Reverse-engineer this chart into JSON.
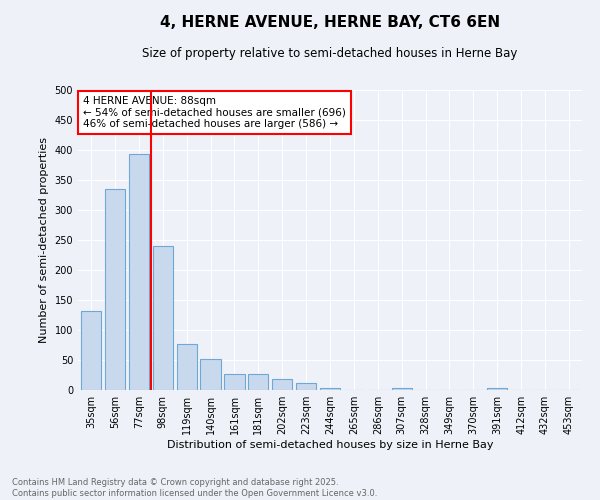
{
  "title": "4, HERNE AVENUE, HERNE BAY, CT6 6EN",
  "subtitle": "Size of property relative to semi-detached houses in Herne Bay",
  "xlabel": "Distribution of semi-detached houses by size in Herne Bay",
  "ylabel": "Number of semi-detached properties",
  "footer_line1": "Contains HM Land Registry data © Crown copyright and database right 2025.",
  "footer_line2": "Contains public sector information licensed under the Open Government Licence v3.0.",
  "bar_labels": [
    "35sqm",
    "56sqm",
    "77sqm",
    "98sqm",
    "119sqm",
    "140sqm",
    "161sqm",
    "181sqm",
    "202sqm",
    "223sqm",
    "244sqm",
    "265sqm",
    "286sqm",
    "307sqm",
    "328sqm",
    "349sqm",
    "370sqm",
    "391sqm",
    "412sqm",
    "432sqm",
    "453sqm"
  ],
  "bar_values": [
    132,
    335,
    393,
    240,
    77,
    51,
    27,
    27,
    19,
    11,
    4,
    0,
    0,
    4,
    0,
    0,
    0,
    3,
    0,
    0,
    0
  ],
  "bar_color": "#c8d9ed",
  "bar_edgecolor": "#6fa8d4",
  "vline_color": "red",
  "annotation_text": "4 HERNE AVENUE: 88sqm\n← 54% of semi-detached houses are smaller (696)\n46% of semi-detached houses are larger (586) →",
  "ylim": [
    0,
    500
  ],
  "yticks": [
    0,
    50,
    100,
    150,
    200,
    250,
    300,
    350,
    400,
    450,
    500
  ],
  "background_color": "#eef2f8",
  "grid_color": "#ffffff",
  "title_fontsize": 11,
  "subtitle_fontsize": 8.5,
  "axis_label_fontsize": 8,
  "tick_fontsize": 7,
  "annotation_fontsize": 7.5,
  "footer_fontsize": 6,
  "footer_color": "#666666"
}
